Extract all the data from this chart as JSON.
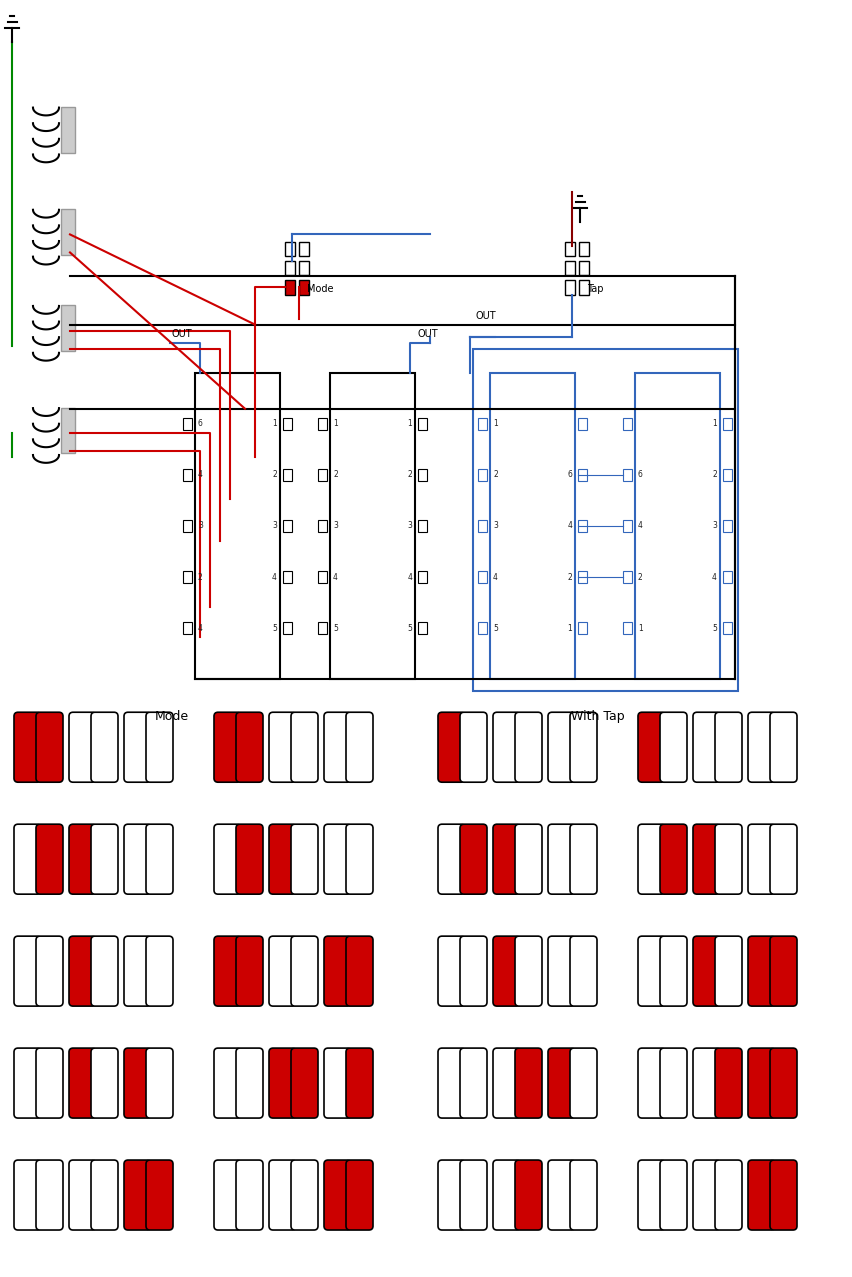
{
  "bg_color": "#ffffff",
  "black": "#000000",
  "red": "#cc0000",
  "blue": "#3366bb",
  "green": "#008800",
  "dark_red": "#880000",
  "mode_label": "Mode",
  "tap_label": "With Tap",
  "active_color": "#cc0000",
  "inactive_color": "#ffffff",
  "border_color": "#000000",
  "mode_patterns": [
    [
      [
        1,
        1,
        0,
        0,
        0,
        0
      ],
      [
        1,
        1,
        0,
        0,
        0,
        0
      ]
    ],
    [
      [
        0,
        1,
        1,
        0,
        0,
        0
      ],
      [
        0,
        1,
        1,
        0,
        0,
        0
      ]
    ],
    [
      [
        0,
        0,
        1,
        0,
        0,
        0
      ],
      [
        1,
        1,
        0,
        0,
        1,
        1
      ]
    ],
    [
      [
        0,
        0,
        1,
        0,
        1,
        0
      ],
      [
        0,
        0,
        1,
        1,
        0,
        1
      ]
    ],
    [
      [
        0,
        0,
        0,
        0,
        1,
        1
      ],
      [
        0,
        0,
        0,
        0,
        1,
        1
      ]
    ]
  ],
  "tap_patterns": [
    [
      [
        1,
        0,
        0,
        0,
        0,
        0
      ],
      [
        1,
        0,
        0,
        0,
        0,
        0
      ]
    ],
    [
      [
        0,
        1,
        1,
        0,
        0,
        0
      ],
      [
        0,
        1,
        1,
        0,
        0,
        0
      ]
    ],
    [
      [
        0,
        0,
        1,
        0,
        0,
        0
      ],
      [
        0,
        0,
        1,
        0,
        1,
        1
      ]
    ],
    [
      [
        0,
        0,
        0,
        1,
        1,
        0
      ],
      [
        0,
        0,
        0,
        1,
        1,
        1
      ]
    ],
    [
      [
        0,
        0,
        0,
        1,
        0,
        0
      ],
      [
        0,
        0,
        0,
        0,
        1,
        1
      ]
    ]
  ]
}
